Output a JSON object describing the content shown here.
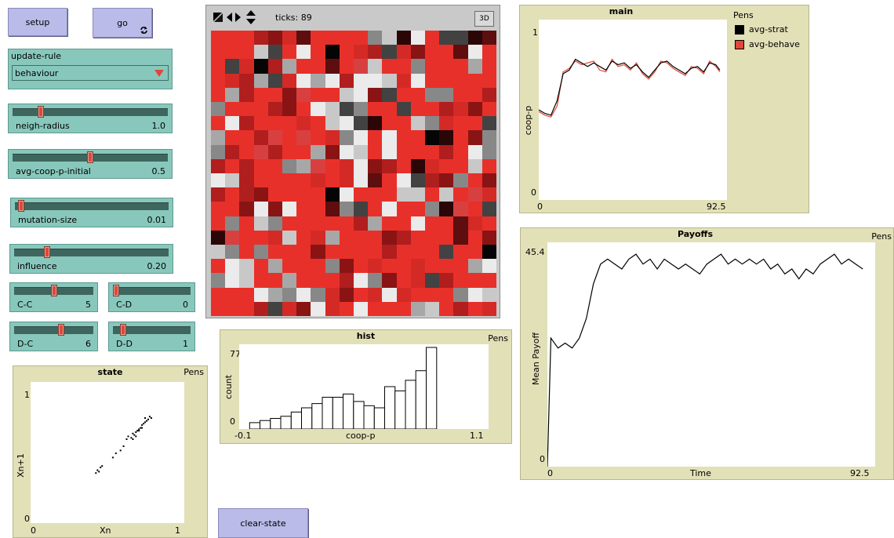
{
  "buttons": {
    "setup": "setup",
    "go": "go",
    "clear_state": "clear-state"
  },
  "chooser": {
    "label": "update-rule",
    "value": "behaviour"
  },
  "sliders": {
    "neigh_radius": {
      "label": "neigh-radius",
      "value": "1.0",
      "fraction": 0.17
    },
    "avg_coop_p_initial": {
      "label": "avg-coop-p-initial",
      "value": "0.5",
      "fraction": 0.5
    },
    "mutation_size": {
      "label": "mutation-size",
      "value": "0.01",
      "fraction": 0.02
    },
    "influence": {
      "label": "influence",
      "value": "0.20",
      "fraction": 0.2
    },
    "cc": {
      "label": "C-C",
      "value": "5",
      "fraction": 0.5
    },
    "cd": {
      "label": "C-D",
      "value": "0",
      "fraction": 0.0
    },
    "dc": {
      "label": "D-C",
      "value": "6",
      "fraction": 0.6
    },
    "dd": {
      "label": "D-D",
      "value": "1",
      "fraction": 0.1
    }
  },
  "world": {
    "ticks_label": "ticks: 89",
    "btn_3d": "3D",
    "palette": [
      "#e8302a",
      "#d42a26",
      "#b01e1e",
      "#8a1414",
      "#5e0e0e",
      "#2a0606",
      "#050505",
      "#888888",
      "#a7a7a7",
      "#c8c8c8",
      "#ebebeb",
      "#424242",
      "#d84040"
    ],
    "patches": "00023140000795a0bb540009b0a06012b13004a00b16280040c9007000800128b1a8a2aa91a00000082003c009a3b00770027000230a9b700b0021300a2000109ab50097100b8002c0c017a0a0065037720c20083a90a00020a72020078c01a320510090a920000101a40ab23703202300006a00099090c1003a3a0047b0a0075c0b07097000002800a004105c0019018000320004039707000300002000b0060a90800073010010008a7a90080002a7301b2000000a87a71301a10007a90002b13a10a000890201a230"
  },
  "hist": {
    "title": "hist",
    "pens": "Pens",
    "ylabel": "count",
    "xlabel": "coop-p",
    "xmin": "-0.1",
    "xmax": "1.1",
    "ymax": "77",
    "ymin": "0",
    "chart_data": {
      "type": "bar",
      "bin_edges_start": -0.05,
      "bin_width": 0.05,
      "values": [
        6,
        8,
        10,
        12,
        16,
        20,
        24,
        30,
        30,
        33,
        26,
        22,
        20,
        40,
        36,
        46,
        55,
        77
      ]
    }
  },
  "state_plot": {
    "title": "state",
    "pens": "Pens",
    "xlabel": "Xn",
    "ylabel": "Xn+1",
    "xmin": "0",
    "xmax": "1",
    "ymin": "0",
    "ymax": "1",
    "chart_data": {
      "type": "scatter",
      "points": [
        [
          0.42,
          0.36
        ],
        [
          0.43,
          0.38
        ],
        [
          0.44,
          0.37
        ],
        [
          0.45,
          0.4
        ],
        [
          0.46,
          0.41
        ],
        [
          0.53,
          0.47
        ],
        [
          0.55,
          0.5
        ],
        [
          0.58,
          0.52
        ],
        [
          0.6,
          0.55
        ],
        [
          0.62,
          0.6
        ],
        [
          0.63,
          0.62
        ],
        [
          0.65,
          0.61
        ],
        [
          0.66,
          0.64
        ],
        [
          0.67,
          0.63
        ],
        [
          0.68,
          0.65
        ],
        [
          0.69,
          0.66
        ],
        [
          0.7,
          0.67
        ],
        [
          0.71,
          0.68
        ],
        [
          0.72,
          0.7
        ],
        [
          0.73,
          0.71
        ],
        [
          0.74,
          0.72
        ],
        [
          0.75,
          0.73
        ],
        [
          0.76,
          0.74
        ],
        [
          0.74,
          0.75
        ],
        [
          0.72,
          0.68
        ],
        [
          0.7,
          0.66
        ],
        [
          0.68,
          0.62
        ],
        [
          0.66,
          0.6
        ],
        [
          0.77,
          0.76
        ],
        [
          0.78,
          0.75
        ]
      ]
    }
  },
  "main_plot": {
    "title": "main",
    "pens_label": "Pens",
    "pens": [
      {
        "name": "avg-strat",
        "color": "#000000"
      },
      {
        "name": "avg-behave",
        "color": "#e0473a"
      }
    ],
    "ylabel": "coop-p",
    "xmin": "0",
    "xmax": "92.5",
    "ymin": "0",
    "ymax": "1",
    "chart_data": {
      "type": "line",
      "x": [
        0,
        3,
        6,
        9,
        12,
        15,
        18,
        21,
        24,
        27,
        30,
        33,
        36,
        39,
        42,
        45,
        48,
        51,
        54,
        57,
        60,
        63,
        66,
        69,
        72,
        75,
        78,
        81,
        84,
        87,
        89
      ],
      "series": [
        {
          "name": "avg-strat",
          "values": [
            0.5,
            0.48,
            0.47,
            0.55,
            0.7,
            0.72,
            0.78,
            0.76,
            0.74,
            0.76,
            0.74,
            0.72,
            0.77,
            0.75,
            0.76,
            0.73,
            0.75,
            0.71,
            0.68,
            0.72,
            0.76,
            0.77,
            0.74,
            0.72,
            0.7,
            0.73,
            0.74,
            0.71,
            0.76,
            0.75,
            0.72
          ]
        },
        {
          "name": "avg-behave",
          "values": [
            0.49,
            0.47,
            0.46,
            0.52,
            0.71,
            0.73,
            0.77,
            0.75,
            0.76,
            0.77,
            0.72,
            0.71,
            0.78,
            0.74,
            0.75,
            0.72,
            0.76,
            0.7,
            0.67,
            0.71,
            0.77,
            0.76,
            0.73,
            0.71,
            0.69,
            0.74,
            0.73,
            0.7,
            0.77,
            0.74,
            0.71
          ]
        }
      ]
    }
  },
  "payoffs_plot": {
    "title": "Payoffs",
    "pens": "Pens",
    "ylabel": "Mean Payoff",
    "xlabel": "Time",
    "xmin": "0",
    "xmax": "92.5",
    "ymin": "0",
    "ymax": "45.4",
    "chart_data": {
      "type": "line",
      "x": [
        0,
        1,
        3,
        5,
        7,
        9,
        11,
        13,
        15,
        17,
        19,
        21,
        23,
        25,
        27,
        29,
        31,
        33,
        35,
        37,
        39,
        41,
        43,
        45,
        47,
        49,
        51,
        53,
        55,
        57,
        59,
        61,
        63,
        65,
        67,
        69,
        71,
        73,
        75,
        77,
        79,
        81,
        83,
        85,
        87,
        89
      ],
      "values": [
        0,
        26,
        24,
        25,
        24,
        26,
        30,
        37,
        41,
        42,
        41,
        40,
        42,
        43,
        41,
        42,
        40,
        42,
        41,
        40,
        41,
        40,
        39,
        41,
        42,
        43,
        41,
        42,
        41,
        42,
        41,
        42,
        40,
        41,
        39,
        40,
        38,
        40,
        39,
        41,
        42,
        43,
        41,
        42,
        41,
        40
      ]
    }
  }
}
